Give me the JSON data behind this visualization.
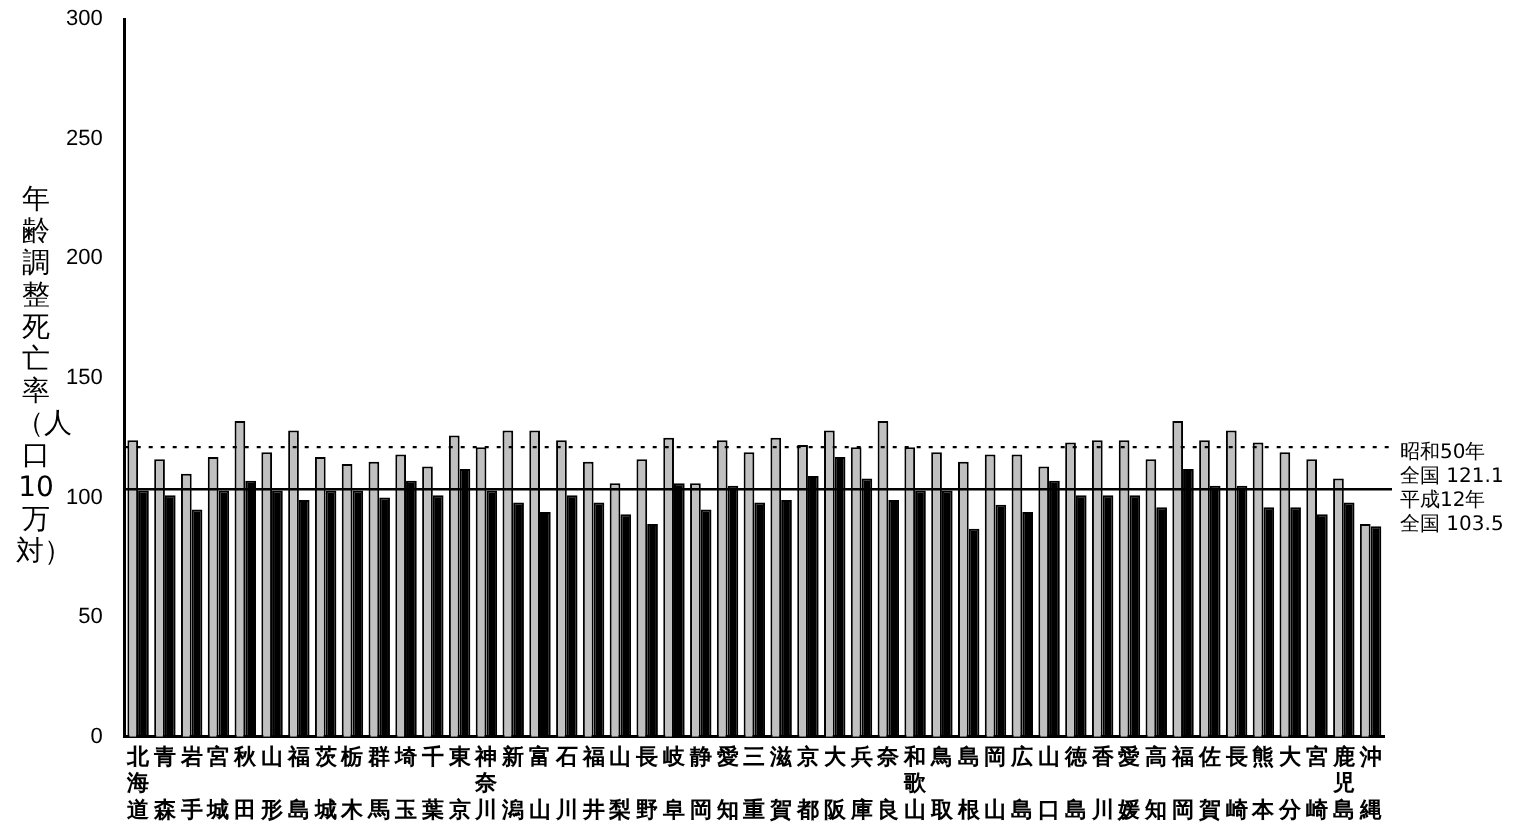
{
  "chart_data": {
    "type": "bar",
    "ylabel": "年齢調整死亡率（人口10万対）",
    "categories": [
      "北海道",
      "青森",
      "岩手",
      "宮城",
      "秋田",
      "山形",
      "福島",
      "茨城",
      "栃木",
      "群馬",
      "埼玉",
      "千葉",
      "東京",
      "神奈川",
      "新潟",
      "富山",
      "石川",
      "福井",
      "山梨",
      "長野",
      "岐阜",
      "静岡",
      "愛知",
      "三重",
      "滋賀",
      "京都",
      "大阪",
      "兵庫",
      "奈良",
      "和歌山",
      "鳥取",
      "島根",
      "岡山",
      "広島",
      "山口",
      "徳島",
      "香川",
      "愛媛",
      "高知",
      "福岡",
      "佐賀",
      "長崎",
      "熊本",
      "大分",
      "宮崎",
      "鹿児島",
      "沖縄"
    ],
    "series": [
      {
        "color": "#c0c0c0",
        "values": [
          124,
          116,
          110,
          117,
          132,
          119,
          128,
          117,
          114,
          115,
          118,
          113,
          126,
          121,
          128,
          128,
          124,
          115,
          106,
          116,
          125,
          106,
          124,
          119,
          125,
          122,
          128,
          121,
          132,
          121,
          119,
          115,
          118,
          118,
          113,
          123,
          124,
          124,
          116,
          132,
          124,
          128,
          123,
          119,
          116,
          108,
          89
        ]
      },
      {
        "color": "#000000",
        "values": [
          103,
          101,
          95,
          103,
          107,
          103,
          99,
          103,
          103,
          100,
          107,
          101,
          112,
          103,
          98,
          94,
          101,
          98,
          93,
          89,
          106,
          95,
          105,
          98,
          99,
          109,
          117,
          108,
          99,
          103,
          103,
          87,
          97,
          94,
          107,
          101,
          101,
          101,
          96,
          112,
          105,
          105,
          96,
          96,
          93,
          98,
          88
        ]
      }
    ],
    "ylim": [
      0,
      300
    ],
    "yticks": [
      0,
      50,
      100,
      150,
      200,
      250,
      300
    ],
    "grid": false,
    "legend": false,
    "ref_lines": [
      {
        "axis": "y",
        "value": 121.1,
        "label": "全国 121.1",
        "line_style": "dotted"
      },
      {
        "axis": "y",
        "value": 103.5,
        "label": "全国 103.5",
        "line_style": "solid"
      }
    ],
    "annotations": [
      "昭和50年",
      "平成12年"
    ]
  }
}
